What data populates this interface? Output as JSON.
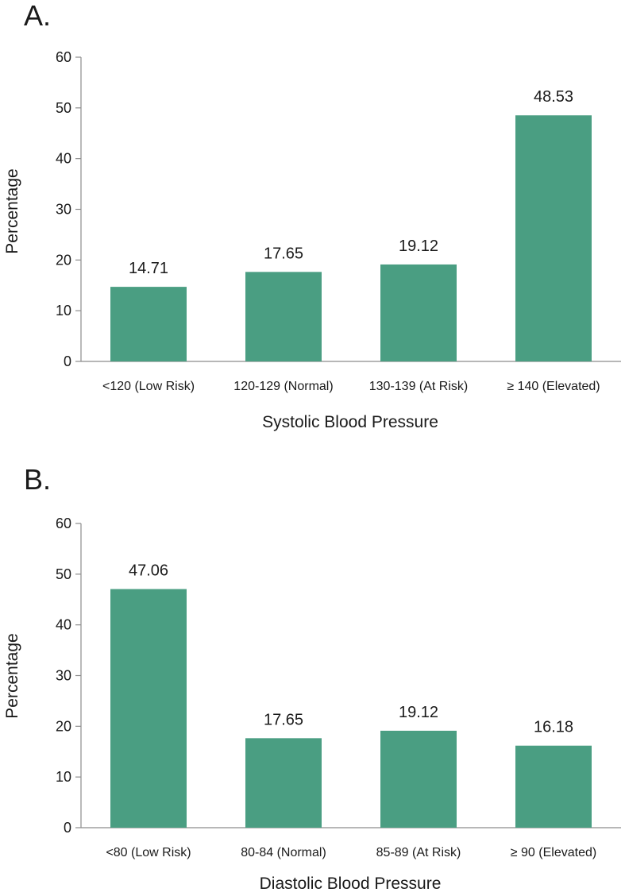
{
  "chart_data": [
    {
      "type": "bar",
      "panel_label": "A.",
      "title": "",
      "categories": [
        "<120 (Low Risk)",
        "120-129 (Normal)",
        "130-139 (At Risk)",
        "≥ 140 (Elevated)"
      ],
      "values": [
        14.71,
        17.65,
        19.12,
        48.53
      ],
      "value_labels": [
        "14.71",
        "17.65",
        "19.12",
        "48.53"
      ],
      "xlabel": "Systolic Blood Pressure",
      "ylabel": "Percentage",
      "ylim": [
        0,
        60
      ],
      "yticks": [
        0,
        10,
        20,
        30,
        40,
        50,
        60
      ],
      "ytick_labels": [
        "0",
        "10",
        "20",
        "30",
        "40",
        "50",
        "60"
      ],
      "bar_color": "#4a9e82",
      "grid": false,
      "legend": "none"
    },
    {
      "type": "bar",
      "panel_label": "B.",
      "title": "",
      "categories": [
        "<80 (Low Risk)",
        "80-84 (Normal)",
        "85-89 (At Risk)",
        "≥ 90 (Elevated)"
      ],
      "values": [
        47.06,
        17.65,
        19.12,
        16.18
      ],
      "value_labels": [
        "47.06",
        "17.65",
        "19.12",
        "16.18"
      ],
      "xlabel": "Diastolic Blood Pressure",
      "ylabel": "Percentage",
      "ylim": [
        0,
        60
      ],
      "yticks": [
        0,
        10,
        20,
        30,
        40,
        50,
        60
      ],
      "ytick_labels": [
        "0",
        "10",
        "20",
        "30",
        "40",
        "50",
        "60"
      ],
      "bar_color": "#4a9e82",
      "grid": false,
      "legend": "none"
    }
  ]
}
